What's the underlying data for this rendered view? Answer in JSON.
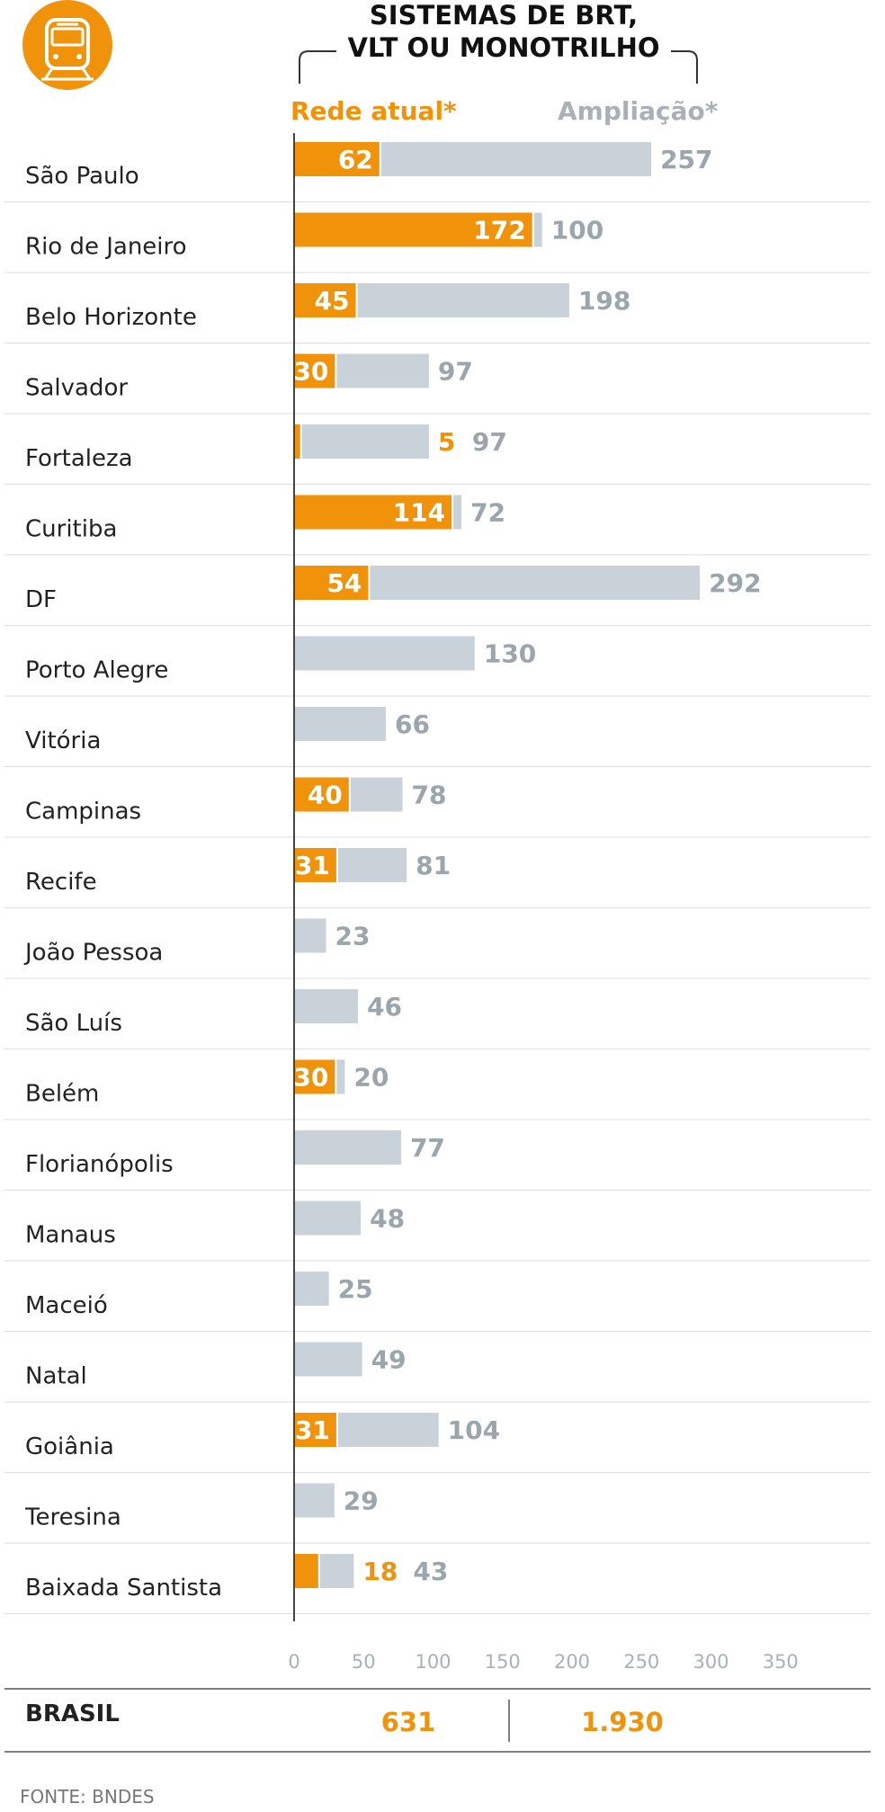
{
  "chart_data": {
    "type": "bar",
    "title_line1": "SISTEMAS DE BRT,",
    "title_line2": "VLT OU MONOTRILHO",
    "legend": {
      "current": "Rede atual*",
      "expansion": "Ampliação*"
    },
    "colors": {
      "current": "#f0920a",
      "expansion": "#c9d2d8",
      "expansion_label": "#9aa6ae"
    },
    "xlim": [
      0,
      350
    ],
    "ticks": [
      0,
      50,
      100,
      150,
      200,
      250,
      300,
      350
    ],
    "series_names": [
      "Rede atual*",
      "Ampliação*"
    ],
    "categories": [
      "São Paulo",
      "Rio de Janeiro",
      "Belo Horizonte",
      "Salvador",
      "Fortaleza",
      "Curitiba",
      "DF",
      "Porto Alegre",
      "Vitória",
      "Campinas",
      "Recife",
      "João Pessoa",
      "São Luís",
      "Belém",
      "Florianópolis",
      "Manaus",
      "Maceió",
      "Natal",
      "Goiânia",
      "Teresina",
      "Baixada Santista"
    ],
    "current": [
      62,
      172,
      45,
      30,
      5,
      114,
      54,
      0,
      0,
      40,
      31,
      0,
      0,
      30,
      0,
      0,
      0,
      0,
      31,
      0,
      18
    ],
    "expansion": [
      257,
      100,
      198,
      97,
      97,
      72,
      292,
      130,
      66,
      78,
      81,
      23,
      46,
      20,
      77,
      48,
      25,
      49,
      104,
      29,
      43
    ],
    "current_label_outside": [
      false,
      false,
      false,
      false,
      true,
      false,
      false,
      false,
      false,
      false,
      false,
      false,
      false,
      false,
      false,
      false,
      false,
      false,
      false,
      false,
      true
    ],
    "total": {
      "label": "BRASIL",
      "current": "631",
      "expansion": "1.930"
    },
    "source": "FONTE: BNDES"
  },
  "icon": "train-icon"
}
